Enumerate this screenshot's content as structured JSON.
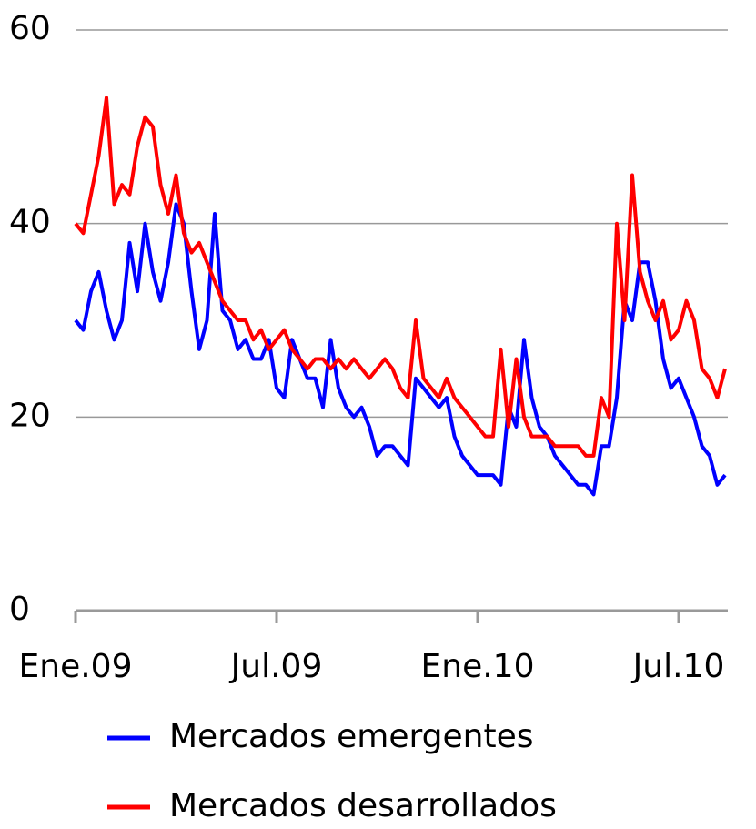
{
  "chart_data": {
    "type": "line",
    "categories": [
      "Ene.09",
      null,
      null,
      null,
      null,
      null,
      null,
      null,
      null,
      null,
      null,
      null,
      null,
      null,
      null,
      null,
      null,
      null,
      null,
      null,
      null,
      null,
      null,
      null,
      null,
      null,
      "Jul.09",
      null,
      null,
      null,
      null,
      null,
      null,
      null,
      null,
      null,
      null,
      null,
      null,
      null,
      null,
      null,
      null,
      null,
      null,
      null,
      null,
      null,
      null,
      null,
      null,
      null,
      "Ene.10",
      null,
      null,
      null,
      null,
      null,
      null,
      null,
      null,
      null,
      null,
      null,
      null,
      null,
      null,
      null,
      null,
      null,
      null,
      null,
      null,
      null,
      null,
      null,
      null,
      null,
      "Jul.10",
      null,
      null,
      null,
      null,
      null,
      null
    ],
    "series": [
      {
        "name": "Mercados emergentes",
        "color": "#0000ff",
        "values": [
          30,
          29,
          33,
          35,
          31,
          28,
          30,
          38,
          33,
          40,
          35,
          32,
          36,
          42,
          40,
          33,
          27,
          30,
          41,
          31,
          30,
          27,
          28,
          26,
          26,
          28,
          23,
          22,
          28,
          26,
          24,
          24,
          21,
          28,
          23,
          21,
          20,
          21,
          19,
          16,
          17,
          17,
          16,
          15,
          24,
          23,
          22,
          21,
          22,
          18,
          16,
          15,
          14,
          14,
          14,
          13,
          21,
          19,
          28,
          22,
          19,
          18,
          16,
          15,
          14,
          13,
          13,
          12,
          17,
          17,
          22,
          32,
          30,
          36,
          36,
          32,
          26,
          23,
          24,
          22,
          20,
          17,
          16,
          13,
          14
        ]
      },
      {
        "name": "Mercados desarrollados",
        "color": "#ff0000",
        "values": [
          40,
          39,
          43,
          47,
          53,
          42,
          44,
          43,
          48,
          51,
          50,
          44,
          41,
          45,
          39,
          37,
          38,
          36,
          34,
          32,
          31,
          30,
          30,
          28,
          29,
          27,
          28,
          29,
          27,
          26,
          25,
          26,
          26,
          25,
          26,
          25,
          26,
          25,
          24,
          25,
          26,
          25,
          23,
          22,
          30,
          24,
          23,
          22,
          24,
          22,
          21,
          20,
          19,
          18,
          18,
          27,
          19,
          26,
          20,
          18,
          18,
          18,
          17,
          17,
          17,
          17,
          16,
          16,
          22,
          20,
          40,
          30,
          45,
          35,
          32,
          30,
          32,
          28,
          29,
          32,
          30,
          25,
          24,
          22,
          25
        ]
      }
    ],
    "ylim": [
      0,
      60
    ],
    "yticks": [
      0,
      20,
      40,
      60
    ],
    "grid": true,
    "legend": "bottom"
  }
}
